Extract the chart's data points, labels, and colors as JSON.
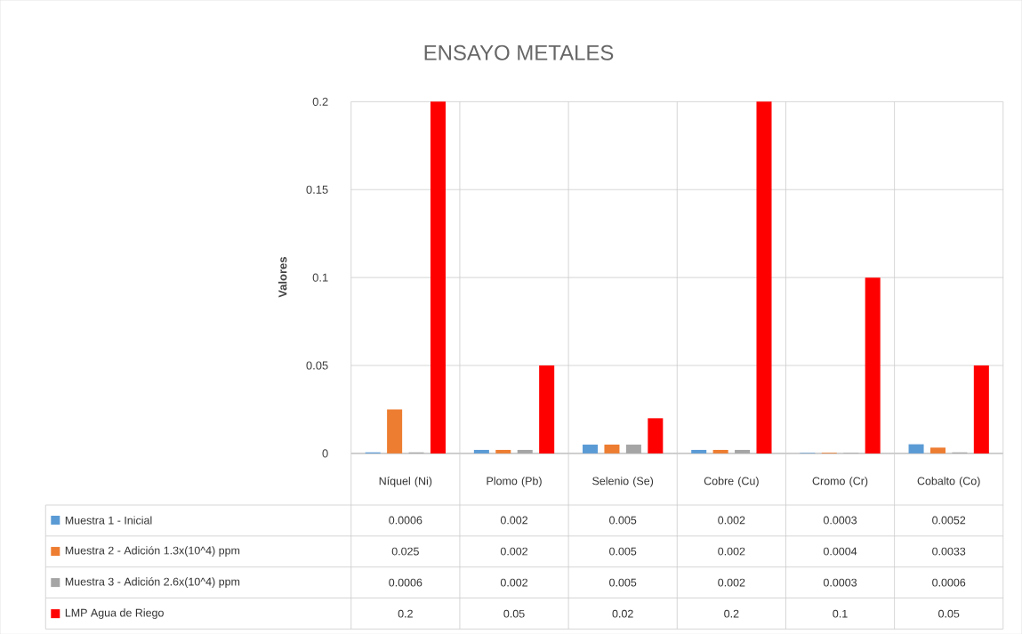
{
  "chart_data": {
    "type": "bar",
    "title": "ENSAYO METALES",
    "ylabel": "Valores",
    "categories": [
      "Níquel (Ni)",
      "Plomo (Pb)",
      "Selenio (Se)",
      "Cobre (Cu)",
      "Cromo (Cr)",
      "Cobalto (Co)"
    ],
    "series": [
      {
        "name": "Muestra 1 - Inicial",
        "color": "#5b9bd5",
        "values": [
          0.0006,
          0.002,
          0.005,
          0.002,
          0.0003,
          0.0052
        ]
      },
      {
        "name": "Muestra 2 - Adición 1.3x(10^4) ppm",
        "color": "#ed7d31",
        "values": [
          0.025,
          0.002,
          0.005,
          0.002,
          0.0004,
          0.0033
        ]
      },
      {
        "name": "Muestra 3 - Adición 2.6x(10^4) ppm",
        "color": "#a5a5a5",
        "values": [
          0.0006,
          0.002,
          0.005,
          0.002,
          0.0003,
          0.0006
        ]
      },
      {
        "name": "LMP Agua de Riego",
        "color": "#ff0000",
        "values": [
          0.2,
          0.05,
          0.02,
          0.2,
          0.1,
          0.05
        ]
      }
    ],
    "ylim": [
      0,
      0.2
    ],
    "yticks": [
      0,
      0.05,
      0.1,
      0.15,
      0.2
    ],
    "grid": "y",
    "legend": "bottom",
    "data_labels": true
  }
}
